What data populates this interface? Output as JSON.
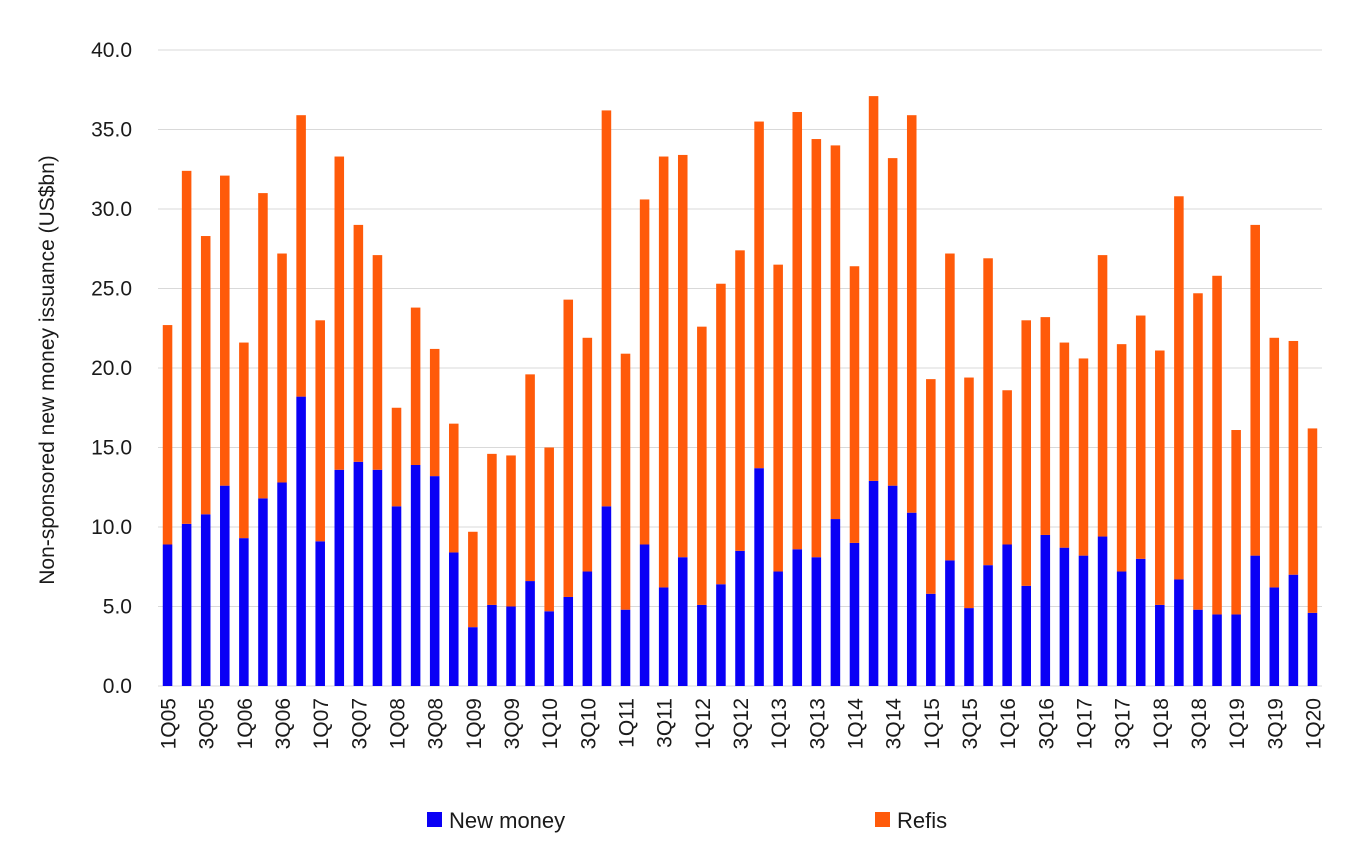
{
  "chart_data": {
    "type": "bar",
    "stacked": true,
    "ylabel": "Non-sponsored new money  issuance (US$bn)",
    "xlabel": "",
    "ylim": [
      0,
      40
    ],
    "yticks": [
      "0.0",
      "5.0",
      "10.0",
      "15.0",
      "20.0",
      "25.0",
      "30.0",
      "35.0",
      "40.0"
    ],
    "grid": "horizontal",
    "legend_position": "bottom",
    "categories": [
      "1Q05",
      "2Q05",
      "3Q05",
      "4Q05",
      "1Q06",
      "2Q06",
      "3Q06",
      "4Q06",
      "1Q07",
      "2Q07",
      "3Q07",
      "4Q07",
      "1Q08",
      "2Q08",
      "3Q08",
      "4Q08",
      "1Q09",
      "2Q09",
      "3Q09",
      "4Q09",
      "1Q10",
      "2Q10",
      "3Q10",
      "4Q10",
      "1Q11",
      "2Q11",
      "3Q11",
      "4Q11",
      "1Q12",
      "2Q12",
      "3Q12",
      "4Q12",
      "1Q13",
      "2Q13",
      "3Q13",
      "4Q13",
      "1Q14",
      "2Q14",
      "3Q14",
      "4Q14",
      "1Q15",
      "2Q15",
      "3Q15",
      "4Q15",
      "1Q16",
      "2Q16",
      "3Q16",
      "4Q16",
      "1Q17",
      "2Q17",
      "3Q17",
      "4Q17",
      "1Q18",
      "2Q18",
      "3Q18",
      "4Q18",
      "1Q19",
      "2Q19",
      "3Q19",
      "4Q19",
      "1Q20"
    ],
    "shown_tick_labels": [
      "1Q05",
      "3Q05",
      "1Q06",
      "3Q06",
      "1Q07",
      "3Q07",
      "1Q08",
      "3Q08",
      "1Q09",
      "3Q09",
      "1Q10",
      "3Q10",
      "1Q11",
      "3Q11",
      "1Q12",
      "3Q12",
      "1Q13",
      "3Q13",
      "1Q14",
      "3Q14",
      "1Q15",
      "3Q15",
      "1Q16",
      "3Q16",
      "1Q17",
      "3Q17",
      "1Q18",
      "3Q18",
      "1Q19",
      "3Q19",
      "1Q20"
    ],
    "series": [
      {
        "name": "New money",
        "color": "#0a00f5",
        "values": [
          8.9,
          10.2,
          10.8,
          12.6,
          9.3,
          11.8,
          12.8,
          18.2,
          9.1,
          13.6,
          14.1,
          13.6,
          11.3,
          13.9,
          13.2,
          8.4,
          3.7,
          5.1,
          5.0,
          6.6,
          4.7,
          5.6,
          7.2,
          11.3,
          4.8,
          8.9,
          6.2,
          8.1,
          5.1,
          6.4,
          8.5,
          13.7,
          7.2,
          8.6,
          8.1,
          10.5,
          9.0,
          12.9,
          12.6,
          10.9,
          5.8,
          7.9,
          4.9,
          7.6,
          8.9,
          6.3,
          9.5,
          8.7,
          8.2,
          9.4,
          7.2,
          8.0,
          5.1,
          6.7,
          4.8,
          4.5,
          4.5,
          8.2,
          6.2,
          7.0,
          4.6
        ]
      },
      {
        "name": "Refis",
        "color": "#ff5a0a",
        "values": [
          13.8,
          22.2,
          17.5,
          19.5,
          12.3,
          19.2,
          14.4,
          17.7,
          13.9,
          19.7,
          14.9,
          13.5,
          6.2,
          9.9,
          8.0,
          8.1,
          6.0,
          9.5,
          9.5,
          13.0,
          10.3,
          18.7,
          14.7,
          24.9,
          16.1,
          21.7,
          27.1,
          25.3,
          17.5,
          18.9,
          18.9,
          21.8,
          19.3,
          27.5,
          26.3,
          23.5,
          17.4,
          24.2,
          20.6,
          25.0,
          13.5,
          19.3,
          14.5,
          19.3,
          9.7,
          16.7,
          13.7,
          12.9,
          12.4,
          17.7,
          14.3,
          15.3,
          16.0,
          24.1,
          19.9,
          21.3,
          11.6,
          20.8,
          15.7,
          14.7,
          11.6
        ]
      }
    ]
  }
}
